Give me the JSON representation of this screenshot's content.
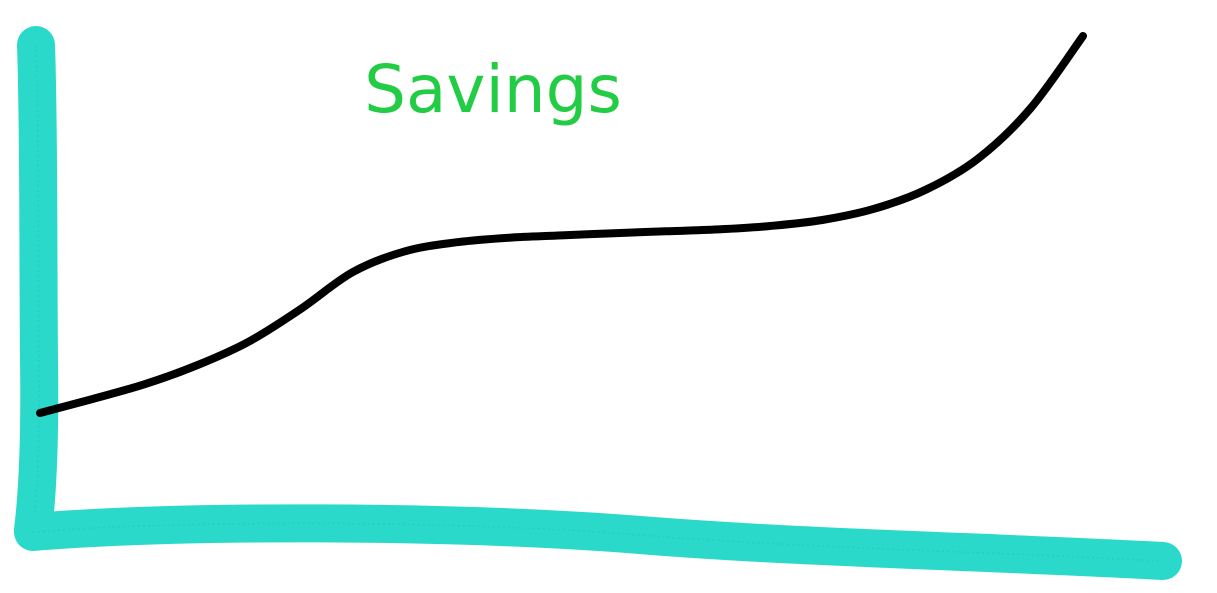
{
  "chart_data": {
    "type": "line",
    "title": "Savings",
    "xlabel": "",
    "ylabel": "",
    "grid": false,
    "legend": "none",
    "series": [
      {
        "x": [
          0,
          5,
          10,
          15,
          20,
          25,
          30,
          35,
          40,
          45,
          50,
          55,
          60,
          65,
          70,
          75,
          80,
          85,
          90,
          95,
          100
        ],
        "values": [
          0,
          3.7,
          7.6,
          12.6,
          18.9,
          27.6,
          37.4,
          42.9,
          45.3,
          46.5,
          47.1,
          47.7,
          48.2,
          48.7,
          49.6,
          51.2,
          54.2,
          59.3,
          67.6,
          80.9,
          100
        ]
      }
    ],
    "xlim": [
      0,
      100
    ],
    "ylim": [
      0,
      100
    ]
  },
  "colors": {
    "title": "#22cc44",
    "axes": "#2ad9c9",
    "axes_edge": "#1fbfb0",
    "line": "#000000",
    "background": "#ffffff"
  }
}
